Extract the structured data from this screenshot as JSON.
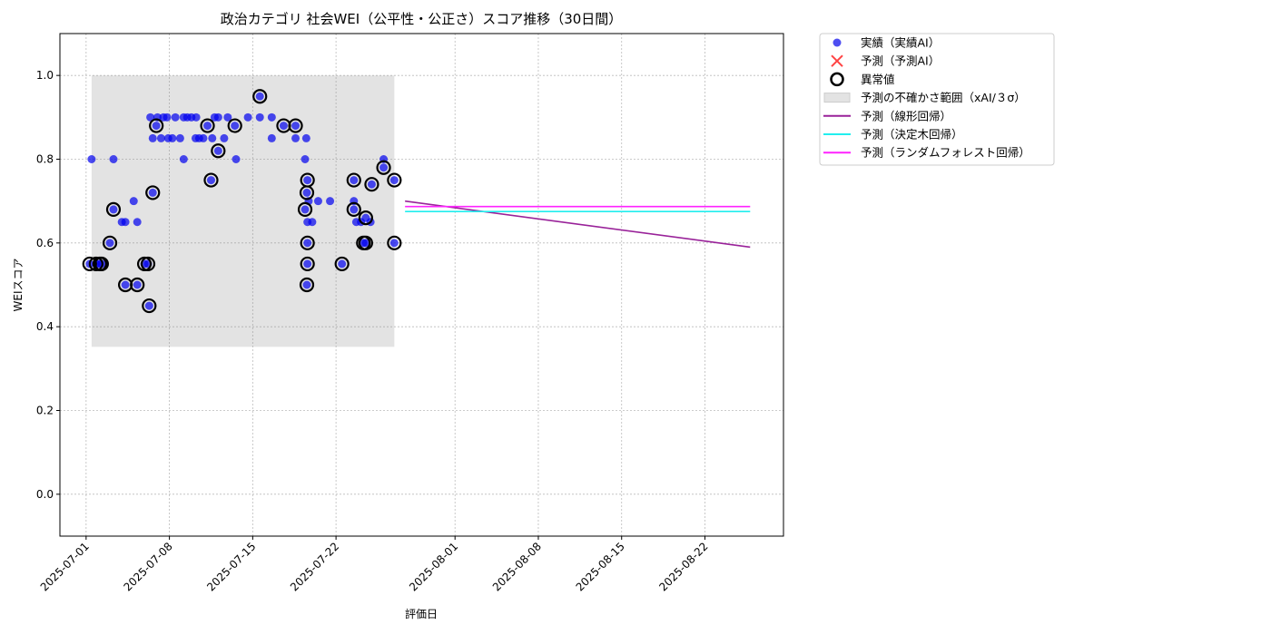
{
  "chart_data": {
    "type": "scatter",
    "title": "政治カテゴリ 社会WEI（公平性・公正さ）スコア推移（30日間）",
    "xlabel": "評価日",
    "ylabel": "WEIスコア",
    "x_origin_date": "2025-07-01",
    "x_unit": "days since 2025-07-01",
    "xlim": [
      -2.2,
      58.6
    ],
    "ylim": [
      -0.1,
      1.1
    ],
    "grid": true,
    "x_ticks": [
      {
        "day": 0,
        "label": "2025-07-01"
      },
      {
        "day": 7,
        "label": "2025-07-08"
      },
      {
        "day": 14,
        "label": "2025-07-15"
      },
      {
        "day": 21,
        "label": "2025-07-22"
      },
      {
        "day": 31,
        "label": "2025-08-01"
      },
      {
        "day": 38,
        "label": "2025-08-08"
      },
      {
        "day": 45,
        "label": "2025-08-15"
      },
      {
        "day": 52,
        "label": "2025-08-22"
      }
    ],
    "y_ticks": [
      {
        "value": 0.0,
        "label": "0.0"
      },
      {
        "value": 0.2,
        "label": "0.2"
      },
      {
        "value": 0.4,
        "label": "0.4"
      },
      {
        "value": 0.6,
        "label": "0.6"
      },
      {
        "value": 0.8,
        "label": "0.8"
      },
      {
        "value": 1.0,
        "label": "1.0"
      }
    ],
    "legend_position": "outside-top-right",
    "legend": [
      {
        "label": "実績（実績AI）",
        "kind": "dot",
        "color": "#2222ee"
      },
      {
        "label": "予測（予測AI）",
        "kind": "x",
        "color": "#ff4444"
      },
      {
        "label": "異常値",
        "kind": "ring",
        "color": "#000000"
      },
      {
        "label": "予測の不確かさ範囲（xAI/３σ）",
        "kind": "patch",
        "color": "#e3e3e3"
      },
      {
        "label": "予測（線形回帰）",
        "kind": "line",
        "color": "#992299"
      },
      {
        "label": "予測（決定木回帰）",
        "kind": "line",
        "color": "#22eeee"
      },
      {
        "label": "予測（ランダムフォレスト回帰）",
        "kind": "line",
        "color": "#ff22ff"
      }
    ],
    "uncertainty_band": {
      "x": [
        0.46,
        25.9
      ],
      "y": [
        0.352,
        1.0
      ]
    },
    "actual": [
      [
        0.46,
        0.8
      ],
      [
        2.3,
        0.8
      ],
      [
        0.3,
        0.55
      ],
      [
        0.84,
        0.55
      ],
      [
        1.15,
        0.55
      ],
      [
        1.3,
        0.55
      ],
      [
        2.0,
        0.6
      ],
      [
        2.3,
        0.68
      ],
      [
        3.0,
        0.65
      ],
      [
        3.3,
        0.65
      ],
      [
        3.3,
        0.5
      ],
      [
        4.0,
        0.7
      ],
      [
        4.3,
        0.65
      ],
      [
        4.3,
        0.5
      ],
      [
        4.9,
        0.55
      ],
      [
        5.2,
        0.55
      ],
      [
        5.3,
        0.45
      ],
      [
        5.6,
        0.72
      ],
      [
        5.4,
        0.9
      ],
      [
        5.6,
        0.85
      ],
      [
        5.9,
        0.88
      ],
      [
        6.0,
        0.9
      ],
      [
        6.3,
        0.85
      ],
      [
        6.5,
        0.9
      ],
      [
        6.8,
        0.9
      ],
      [
        6.9,
        0.85
      ],
      [
        7.25,
        0.85
      ],
      [
        7.5,
        0.9
      ],
      [
        7.9,
        0.85
      ],
      [
        8.2,
        0.8
      ],
      [
        8.2,
        0.9
      ],
      [
        8.5,
        0.9
      ],
      [
        8.85,
        0.9
      ],
      [
        9.2,
        0.85
      ],
      [
        9.25,
        0.9
      ],
      [
        9.5,
        0.85
      ],
      [
        9.85,
        0.85
      ],
      [
        10.2,
        0.88
      ],
      [
        10.5,
        0.75
      ],
      [
        10.6,
        0.85
      ],
      [
        10.8,
        0.9
      ],
      [
        11.1,
        0.82
      ],
      [
        11.1,
        0.9
      ],
      [
        11.6,
        0.85
      ],
      [
        11.9,
        0.9
      ],
      [
        12.5,
        0.88
      ],
      [
        12.6,
        0.8
      ],
      [
        13.6,
        0.9
      ],
      [
        14.6,
        0.95
      ],
      [
        14.6,
        0.9
      ],
      [
        15.6,
        0.9
      ],
      [
        15.6,
        0.85
      ],
      [
        16.6,
        0.88
      ],
      [
        17.6,
        0.88
      ],
      [
        17.6,
        0.85
      ],
      [
        18.4,
        0.8
      ],
      [
        18.5,
        0.85
      ],
      [
        18.6,
        0.75
      ],
      [
        18.55,
        0.72
      ],
      [
        18.4,
        0.68
      ],
      [
        18.7,
        0.7
      ],
      [
        19.5,
        0.7
      ],
      [
        20.5,
        0.7
      ],
      [
        18.6,
        0.65
      ],
      [
        19.0,
        0.65
      ],
      [
        18.6,
        0.6
      ],
      [
        18.6,
        0.55
      ],
      [
        18.55,
        0.5
      ],
      [
        21.5,
        0.55
      ],
      [
        22.5,
        0.75
      ],
      [
        22.5,
        0.7
      ],
      [
        22.5,
        0.68
      ],
      [
        22.7,
        0.65
      ],
      [
        23.1,
        0.65
      ],
      [
        23.5,
        0.66
      ],
      [
        23.9,
        0.65
      ],
      [
        23.3,
        0.6
      ],
      [
        23.5,
        0.6
      ],
      [
        24.0,
        0.74
      ],
      [
        25.0,
        0.8
      ],
      [
        25.0,
        0.78
      ],
      [
        25.9,
        0.75
      ],
      [
        25.9,
        0.6
      ]
    ],
    "anomalies": [
      [
        0.3,
        0.55
      ],
      [
        0.84,
        0.55
      ],
      [
        1.15,
        0.55
      ],
      [
        1.3,
        0.55
      ],
      [
        2.0,
        0.6
      ],
      [
        2.3,
        0.68
      ],
      [
        3.3,
        0.5
      ],
      [
        4.3,
        0.5
      ],
      [
        4.9,
        0.55
      ],
      [
        5.2,
        0.55
      ],
      [
        5.3,
        0.45
      ],
      [
        5.6,
        0.72
      ],
      [
        5.9,
        0.88
      ],
      [
        10.2,
        0.88
      ],
      [
        10.5,
        0.75
      ],
      [
        11.1,
        0.82
      ],
      [
        12.5,
        0.88
      ],
      [
        14.6,
        0.95
      ],
      [
        16.6,
        0.88
      ],
      [
        17.6,
        0.88
      ],
      [
        18.6,
        0.75
      ],
      [
        18.55,
        0.72
      ],
      [
        18.4,
        0.68
      ],
      [
        18.6,
        0.6
      ],
      [
        18.6,
        0.55
      ],
      [
        18.55,
        0.5
      ],
      [
        21.5,
        0.55
      ],
      [
        22.5,
        0.75
      ],
      [
        22.5,
        0.68
      ],
      [
        23.5,
        0.66
      ],
      [
        23.3,
        0.6
      ],
      [
        23.5,
        0.6
      ],
      [
        24.0,
        0.74
      ],
      [
        25.0,
        0.78
      ],
      [
        25.9,
        0.75
      ],
      [
        25.9,
        0.6
      ]
    ],
    "forecasts": [
      {
        "name": "予測（線形回帰）",
        "color": "#992299",
        "x": [
          26.8,
          55.8
        ],
        "y": [
          0.7,
          0.59
        ]
      },
      {
        "name": "予測（決定木回帰）",
        "color": "#22eeee",
        "x": [
          26.8,
          55.8
        ],
        "y": [
          0.675,
          0.675
        ]
      },
      {
        "name": "予測（ランダムフォレスト回帰）",
        "color": "#ff22ff",
        "x": [
          26.8,
          55.8
        ],
        "y": [
          0.687,
          0.687
        ]
      }
    ]
  }
}
